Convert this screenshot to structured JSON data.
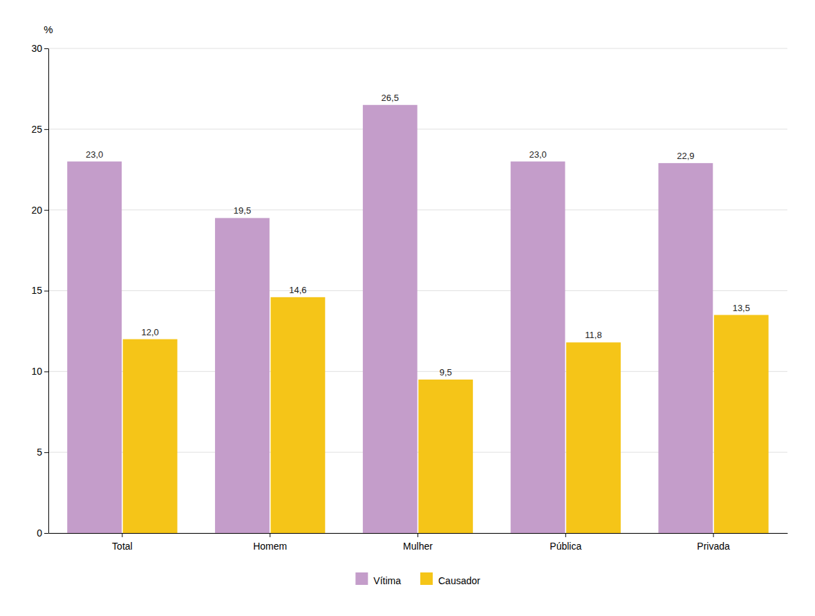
{
  "chart_data": {
    "type": "bar",
    "ylabel": "%",
    "categories": [
      "Total",
      "Homem",
      "Mulher",
      "Pública",
      "Privada"
    ],
    "series": [
      {
        "name": "Vítima",
        "color": "#c49dca",
        "values": [
          23.0,
          19.5,
          26.5,
          23.0,
          22.9
        ],
        "value_labels": [
          "23,0",
          "19,5",
          "26,5",
          "23,0",
          "22,9"
        ]
      },
      {
        "name": "Causador",
        "color": "#f5c518",
        "values": [
          12.0,
          14.6,
          9.5,
          11.8,
          13.5
        ],
        "value_labels": [
          "12,0",
          "14,6",
          "9,5",
          "11,8",
          "13,5"
        ]
      }
    ],
    "ylim": [
      0,
      30
    ],
    "yticks": [
      0,
      5,
      10,
      15,
      20,
      25,
      30
    ],
    "grid": true,
    "legend": "bottom",
    "data_labels": true
  }
}
